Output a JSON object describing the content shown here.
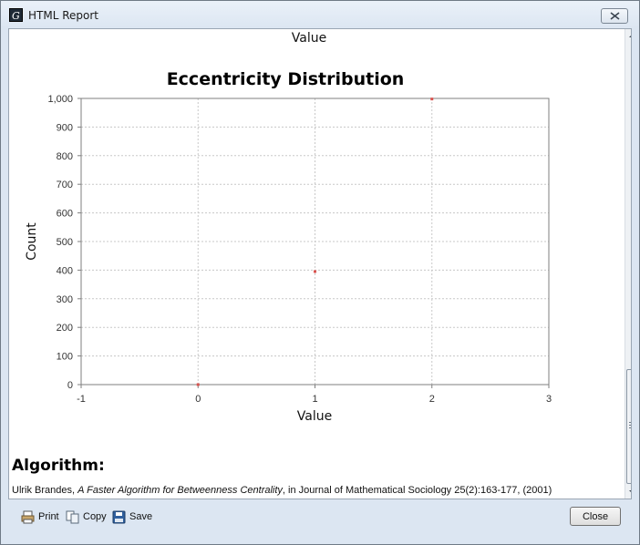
{
  "window": {
    "title": "HTML Report"
  },
  "report": {
    "top_label": "Value",
    "algorithm_heading": "Algorithm:",
    "citation": {
      "author": "Ulrik Brandes, ",
      "work": "A Faster Algorithm for Betweenness Centrality",
      "rest": ", in Journal of Mathematical Sociology 25(2):163-177, (2001)"
    }
  },
  "chart_data": {
    "type": "scatter",
    "title": "Eccentricity Distribution",
    "xlabel": "Value",
    "ylabel": "Count",
    "xlim": [
      -1,
      3
    ],
    "ylim": [
      0,
      1000
    ],
    "x_ticks": [
      -1,
      0,
      1,
      2,
      3
    ],
    "y_ticks": [
      0,
      100,
      200,
      300,
      400,
      500,
      600,
      700,
      800,
      900,
      1000
    ],
    "x_tick_labels": [
      "-1",
      "0",
      "1",
      "2",
      "3"
    ],
    "y_tick_labels": [
      "0",
      "100",
      "200",
      "300",
      "400",
      "500",
      "600",
      "700",
      "800",
      "900",
      "1,000"
    ],
    "grid": true,
    "point_color": "#d9534f",
    "points": [
      {
        "x": 0,
        "y": 0
      },
      {
        "x": 1,
        "y": 395
      },
      {
        "x": 2,
        "y": 998
      }
    ]
  },
  "toolbar": {
    "print_label": "Print",
    "copy_label": "Copy",
    "save_label": "Save",
    "close_label": "Close"
  }
}
